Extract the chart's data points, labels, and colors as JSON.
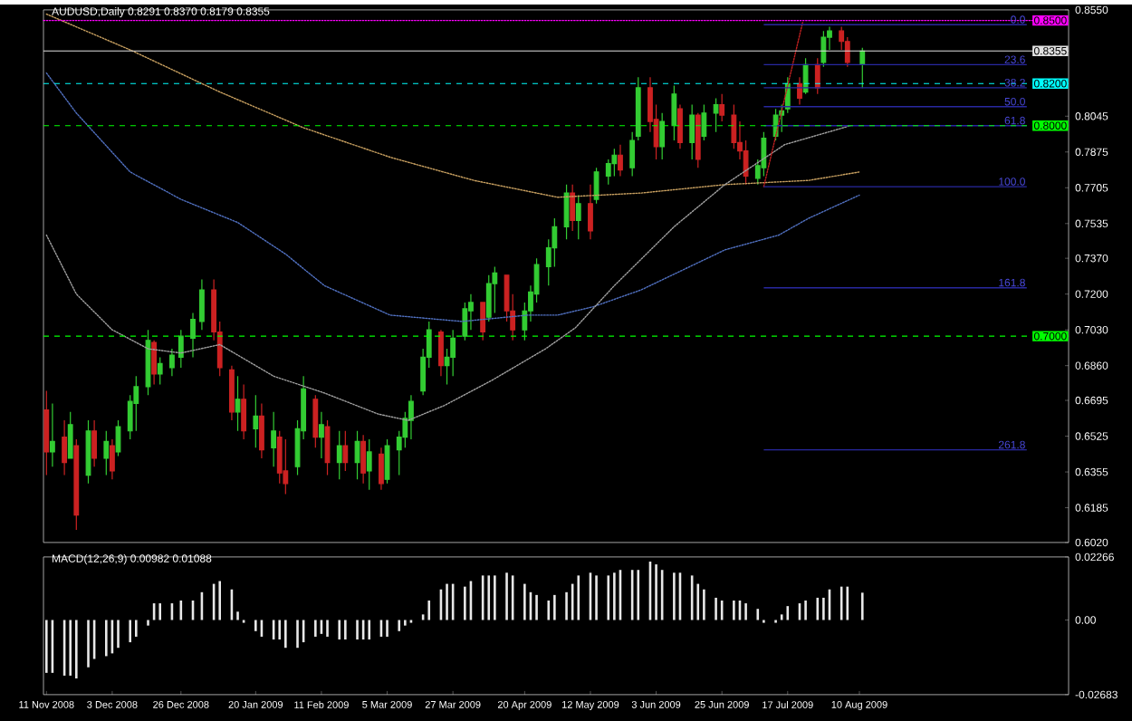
{
  "chart_data": [
    {
      "type": "candlestick",
      "title": "AUDUSD,Daily 0.8291 0.8370 0.8179 0.8355",
      "xlim": [
        "2008-11-10",
        "2009-10-19"
      ],
      "ylim": [
        0.602,
        0.855
      ],
      "tick_labels": "y",
      "yticks": [
        {
          "value": 0.855,
          "label": "0.8550"
        },
        0.8045,
        0.7875,
        0.7705,
        0.7535,
        {
          "value": 0.737,
          "label": "0.7370"
        },
        {
          "value": 0.72,
          "label": "0.7200"
        },
        {
          "value": 0.703,
          "label": "0.7030"
        },
        {
          "value": 0.686,
          "label": "0.6860"
        },
        0.6695,
        0.6525,
        0.6355,
        0.6185,
        {
          "value": 0.602,
          "label": "0.6020"
        }
      ],
      "series": [
        {
          "type": "candlestick",
          "color": "#33cc33",
          "x": [
            "2008-11-13",
            "2008-11-19",
            "2008-11-25",
            "2008-12-01",
            "2008-12-05",
            "2008-12-09",
            "2008-12-11",
            "2008-12-15",
            "2008-12-19",
            "2008-12-23",
            "2008-12-26",
            "2008-12-30",
            "2009-01-02",
            "2009-01-14",
            "2009-01-20",
            "2009-01-26",
            "2009-02-03",
            "2009-02-05",
            "2009-02-11",
            "2009-02-17",
            "2009-02-23",
            "2009-02-27",
            "2009-03-05",
            "2009-03-09",
            "2009-03-11",
            "2009-03-13",
            "2009-03-17",
            "2009-03-19",
            "2009-03-25",
            "2009-03-27",
            "2009-03-31",
            "2009-04-02",
            "2009-04-08",
            "2009-04-10",
            "2009-04-20",
            "2009-04-22",
            "2009-04-24",
            "2009-04-28",
            "2009-04-30",
            "2009-05-04",
            "2009-05-08",
            "2009-05-14",
            "2009-05-18",
            "2009-05-20",
            "2009-05-26",
            "2009-05-28",
            "2009-06-05",
            "2009-06-09",
            "2009-06-15",
            "2009-06-19",
            "2009-06-23",
            "2009-07-07",
            "2009-07-09",
            "2009-07-13",
            "2009-07-15",
            "2009-07-17",
            "2009-07-23",
            "2009-07-29",
            "2009-07-31",
            "2009-08-11"
          ],
          "ohlc": [
            [
              0.645,
              0.668,
              0.638,
              0.65
            ],
            [
              0.642,
              0.664,
              0.642,
              0.658
            ],
            [
              0.634,
              0.66,
              0.63,
              0.655
            ],
            [
              0.642,
              0.655,
              0.634,
              0.65
            ],
            [
              0.645,
              0.66,
              0.643,
              0.657
            ],
            [
              0.655,
              0.672,
              0.651,
              0.669
            ],
            [
              0.668,
              0.681,
              0.655,
              0.676
            ],
            [
              0.676,
              0.703,
              0.672,
              0.698
            ],
            [
              0.682,
              0.69,
              0.677,
              0.687
            ],
            [
              0.685,
              0.694,
              0.681,
              0.691
            ],
            [
              0.69,
              0.703,
              0.685,
              0.7
            ],
            [
              0.699,
              0.711,
              0.69,
              0.708
            ],
            [
              0.707,
              0.727,
              0.703,
              0.722
            ],
            [
              0.664,
              0.681,
              0.655,
              0.67
            ],
            [
              0.656,
              0.672,
              0.647,
              0.662
            ],
            [
              0.647,
              0.664,
              0.638,
              0.655
            ],
            [
              0.638,
              0.66,
              0.634,
              0.656
            ],
            [
              0.655,
              0.681,
              0.651,
              0.675
            ],
            [
              0.652,
              0.664,
              0.642,
              0.658
            ],
            [
              0.64,
              0.655,
              0.632,
              0.648
            ],
            [
              0.64,
              0.655,
              0.632,
              0.65
            ],
            [
              0.636,
              0.651,
              0.627,
              0.645
            ],
            [
              0.632,
              0.651,
              0.63,
              0.648
            ],
            [
              0.646,
              0.655,
              0.634,
              0.652
            ],
            [
              0.652,
              0.664,
              0.647,
              0.661
            ],
            [
              0.66,
              0.672,
              0.651,
              0.669
            ],
            [
              0.674,
              0.694,
              0.672,
              0.69
            ],
            [
              0.69,
              0.707,
              0.685,
              0.703
            ],
            [
              0.686,
              0.694,
              0.677,
              0.69
            ],
            [
              0.69,
              0.703,
              0.681,
              0.699
            ],
            [
              0.7,
              0.716,
              0.698,
              0.713
            ],
            [
              0.712,
              0.72,
              0.703,
              0.716
            ],
            [
              0.709,
              0.729,
              0.707,
              0.725
            ],
            [
              0.725,
              0.733,
              0.711,
              0.73
            ],
            [
              0.703,
              0.716,
              0.698,
              0.712
            ],
            [
              0.712,
              0.724,
              0.707,
              0.721
            ],
            [
              0.72,
              0.737,
              0.716,
              0.734
            ],
            [
              0.733,
              0.746,
              0.724,
              0.742
            ],
            [
              0.742,
              0.756,
              0.733,
              0.752
            ],
            [
              0.752,
              0.772,
              0.746,
              0.768
            ],
            [
              0.755,
              0.767,
              0.746,
              0.763
            ],
            [
              0.765,
              0.78,
              0.763,
              0.778
            ],
            [
              0.776,
              0.784,
              0.772,
              0.782
            ],
            [
              0.782,
              0.789,
              0.776,
              0.786
            ],
            [
              0.78,
              0.797,
              0.776,
              0.793
            ],
            [
              0.795,
              0.823,
              0.793,
              0.818
            ],
            [
              0.79,
              0.806,
              0.784,
              0.802
            ],
            [
              0.8,
              0.819,
              0.793,
              0.815
            ],
            [
              0.792,
              0.81,
              0.784,
              0.805
            ],
            [
              0.795,
              0.81,
              0.793,
              0.806
            ],
            [
              0.806,
              0.813,
              0.797,
              0.81
            ],
            [
              0.775,
              0.784,
              0.772,
              0.781
            ],
            [
              0.78,
              0.797,
              0.776,
              0.794
            ],
            [
              0.795,
              0.808,
              0.793,
              0.805
            ],
            [
              0.805,
              0.81,
              0.797,
              0.807
            ],
            [
              0.808,
              0.823,
              0.806,
              0.82
            ],
            [
              0.816,
              0.832,
              0.815,
              0.829
            ],
            [
              0.83,
              0.845,
              0.828,
              0.842
            ],
            [
              0.842,
              0.847,
              0.836,
              0.845
            ],
            [
              0.8291,
              0.837,
              0.8179,
              0.8355
            ]
          ]
        },
        {
          "type": "candlestick",
          "color": "#cc2222",
          "x": [
            "2008-11-11",
            "2008-11-17",
            "2008-11-21",
            "2008-11-27",
            "2008-12-03",
            "2008-12-17",
            "2009-01-06",
            "2009-01-08",
            "2009-01-12",
            "2009-01-16",
            "2009-01-22",
            "2009-01-28",
            "2009-01-30",
            "2009-02-09",
            "2009-02-13",
            "2009-02-19",
            "2009-02-25",
            "2009-03-03",
            "2009-03-23",
            "2009-04-06",
            "2009-04-14",
            "2009-04-16",
            "2009-05-06",
            "2009-05-12",
            "2009-05-22",
            "2009-06-01",
            "2009-06-03",
            "2009-06-11",
            "2009-06-17",
            "2009-06-25",
            "2009-06-29",
            "2009-07-01",
            "2009-07-03",
            "2009-07-21",
            "2009-07-27",
            "2009-08-04",
            "2009-08-06"
          ],
          "ohlc": [
            [
              0.665,
              0.674,
              0.634,
              0.645
            ],
            [
              0.652,
              0.66,
              0.634,
              0.64
            ],
            [
              0.648,
              0.651,
              0.608,
              0.615
            ],
            [
              0.655,
              0.66,
              0.638,
              0.642
            ],
            [
              0.648,
              0.651,
              0.632,
              0.636
            ],
            [
              0.697,
              0.698,
              0.677,
              0.682
            ],
            [
              0.722,
              0.727,
              0.698,
              0.702
            ],
            [
              0.702,
              0.707,
              0.681,
              0.685
            ],
            [
              0.684,
              0.686,
              0.66,
              0.664
            ],
            [
              0.67,
              0.677,
              0.651,
              0.655
            ],
            [
              0.662,
              0.668,
              0.642,
              0.646
            ],
            [
              0.652,
              0.655,
              0.63,
              0.635
            ],
            [
              0.636,
              0.651,
              0.625,
              0.63
            ],
            [
              0.67,
              0.672,
              0.647,
              0.652
            ],
            [
              0.657,
              0.66,
              0.634,
              0.64
            ],
            [
              0.648,
              0.655,
              0.636,
              0.64
            ],
            [
              0.65,
              0.653,
              0.63,
              0.635
            ],
            [
              0.644,
              0.647,
              0.627,
              0.63
            ],
            [
              0.702,
              0.703,
              0.681,
              0.686
            ],
            [
              0.716,
              0.716,
              0.698,
              0.702
            ],
            [
              0.729,
              0.729,
              0.707,
              0.712
            ],
            [
              0.712,
              0.72,
              0.698,
              0.703
            ],
            [
              0.768,
              0.772,
              0.75,
              0.755
            ],
            [
              0.763,
              0.772,
              0.746,
              0.75
            ],
            [
              0.786,
              0.791,
              0.776,
              0.779
            ],
            [
              0.818,
              0.823,
              0.797,
              0.802
            ],
            [
              0.803,
              0.81,
              0.784,
              0.79
            ],
            [
              0.808,
              0.81,
              0.789,
              0.792
            ],
            [
              0.805,
              0.806,
              0.78,
              0.784
            ],
            [
              0.81,
              0.815,
              0.802,
              0.805
            ],
            [
              0.805,
              0.81,
              0.789,
              0.792
            ],
            [
              0.792,
              0.802,
              0.784,
              0.788
            ],
            [
              0.788,
              0.793,
              0.772,
              0.776
            ],
            [
              0.82,
              0.823,
              0.81,
              0.813
            ],
            [
              0.829,
              0.832,
              0.815,
              0.818
            ],
            [
              0.845,
              0.847,
              0.836,
              0.84
            ],
            [
              0.84,
              0.842,
              0.828,
              0.83
            ]
          ]
        },
        {
          "type": "line",
          "color": "#c8a060",
          "line_style": "dotted",
          "x": [
            "2008-11-11",
            "2008-12-09",
            "2009-01-08",
            "2009-02-05",
            "2009-03-06",
            "2009-04-03",
            "2009-05-01",
            "2009-05-29",
            "2009-06-26",
            "2009-07-24",
            "2009-08-10"
          ],
          "values": [
            0.853,
            0.836,
            0.816,
            0.799,
            0.785,
            0.774,
            0.766,
            0.768,
            0.772,
            0.774,
            0.778
          ]
        },
        {
          "type": "line",
          "color": "#5070c0",
          "line_style": "dotted",
          "x": [
            "2008-11-11",
            "2008-11-21",
            "2008-12-09",
            "2008-12-26",
            "2009-01-14",
            "2009-01-30",
            "2009-02-12",
            "2009-03-06",
            "2009-03-30",
            "2009-04-21",
            "2009-05-01",
            "2009-05-13",
            "2009-05-29",
            "2009-06-26",
            "2009-07-14",
            "2009-07-24",
            "2009-08-10"
          ],
          "values": [
            0.825,
            0.806,
            0.778,
            0.765,
            0.754,
            0.739,
            0.724,
            0.71,
            0.707,
            0.71,
            0.71,
            0.714,
            0.722,
            0.741,
            0.748,
            0.756,
            0.767
          ]
        },
        {
          "type": "line",
          "color": "#a0a0a0",
          "line_style": "dotted",
          "x": [
            "2008-11-11",
            "2008-11-21",
            "2008-12-03",
            "2008-12-15",
            "2008-12-26",
            "2009-01-08",
            "2009-01-26",
            "2009-02-12",
            "2009-03-02",
            "2009-03-12",
            "2009-03-24",
            "2009-04-09",
            "2009-04-27",
            "2009-05-07",
            "2009-05-20",
            "2009-06-09",
            "2009-06-26",
            "2009-07-16",
            "2009-08-07"
          ],
          "values": [
            0.748,
            0.72,
            0.703,
            0.694,
            0.692,
            0.696,
            0.681,
            0.673,
            0.663,
            0.66,
            0.667,
            0.679,
            0.694,
            0.704,
            0.724,
            0.752,
            0.772,
            0.791,
            0.8
          ]
        },
        {
          "type": "line",
          "color": "#c02020",
          "line_style": "dotted",
          "x": [
            "2009-07-09",
            "2009-07-22"
          ],
          "values": [
            0.771,
            0.849
          ]
        },
        {
          "type": "line",
          "color": "#2828a0",
          "line_style": "solid",
          "x": [
            "2009-07-09",
            "2009-10-05"
          ],
          "values": [
            0.848,
            0.848
          ]
        },
        {
          "type": "line",
          "color": "#2828a0",
          "line_style": "solid",
          "x": [
            "2009-07-09",
            "2009-10-05"
          ],
          "values": [
            0.829,
            0.829
          ]
        },
        {
          "type": "line",
          "color": "#2828a0",
          "line_style": "solid",
          "x": [
            "2009-07-09",
            "2009-10-05"
          ],
          "values": [
            0.818,
            0.818
          ]
        },
        {
          "type": "line",
          "color": "#2828a0",
          "line_style": "solid",
          "x": [
            "2009-07-09",
            "2009-10-05"
          ],
          "values": [
            0.809,
            0.809
          ]
        },
        {
          "type": "line",
          "color": "#2828a0",
          "line_style": "solid",
          "x": [
            "2009-07-09",
            "2009-10-05"
          ],
          "values": [
            0.8,
            0.8
          ]
        },
        {
          "type": "line",
          "color": "#2828a0",
          "line_style": "solid",
          "x": [
            "2009-07-09",
            "2009-10-05"
          ],
          "values": [
            0.771,
            0.771
          ]
        },
        {
          "type": "line",
          "color": "#2828a0",
          "line_style": "solid",
          "x": [
            "2009-07-09",
            "2009-10-05"
          ],
          "values": [
            0.723,
            0.723
          ]
        },
        {
          "type": "line",
          "color": "#2828a0",
          "line_style": "solid",
          "x": [
            "2009-07-09",
            "2009-10-05"
          ],
          "values": [
            0.646,
            0.646
          ]
        }
      ],
      "ref_lines": [
        {
          "axis": "y",
          "value": 0.85,
          "label": "0.8500",
          "color": "#ff00ff",
          "line_style": "dotted"
        },
        {
          "axis": "y",
          "value": 0.8355,
          "label": "0.8355",
          "color": "#e0e0e0",
          "line_style": "solid"
        },
        {
          "axis": "y",
          "value": 0.82,
          "label": "0.8200",
          "color": "#00ffff",
          "line_style": "dashed"
        },
        {
          "axis": "y",
          "value": 0.8,
          "label": "0.8000",
          "color": "#00ff00",
          "line_style": "dashed"
        },
        {
          "axis": "y",
          "value": 0.7,
          "label": "0.7000",
          "color": "#00ff00",
          "line_style": "dashed"
        }
      ],
      "annotations": [
        {
          "text": "0.0",
          "x": "2009-10-05",
          "y": 0.848
        },
        {
          "text": "23.6",
          "x": "2009-10-05",
          "y": 0.829
        },
        {
          "text": "38.2",
          "x": "2009-10-05",
          "y": 0.818
        },
        {
          "text": "50.0",
          "x": "2009-10-05",
          "y": 0.809
        },
        {
          "text": "61.8",
          "x": "2009-10-05",
          "y": 0.8
        },
        {
          "text": "100.0",
          "x": "2009-10-05",
          "y": 0.771
        },
        {
          "text": "161.8",
          "x": "2009-10-05",
          "y": 0.723
        },
        {
          "text": "261.8",
          "x": "2009-10-05",
          "y": 0.646
        }
      ]
    },
    {
      "type": "bar",
      "title": "MACD(12,26,9) 0.00982 0.01088",
      "color": "#e8e8e8",
      "xlim": [
        "2008-11-10",
        "2009-10-19"
      ],
      "ylim": [
        -0.02683,
        0.02266
      ],
      "yticks": [
        0.02266,
        {
          "value": 0,
          "label": "0.00"
        },
        -0.02683
      ],
      "xticks": [
        {
          "value": "2008-11-11",
          "label": "11 Nov 2008"
        },
        {
          "value": "2008-12-03",
          "label": "3 Dec 2008"
        },
        {
          "value": "2008-12-26",
          "label": "26 Dec 2008"
        },
        {
          "value": "2009-01-20",
          "label": "20 Jan 2009"
        },
        {
          "value": "2009-02-11",
          "label": "11 Feb 2009"
        },
        {
          "value": "2009-03-05",
          "label": "5 Mar 2009"
        },
        {
          "value": "2009-03-27",
          "label": "27 Mar 2009"
        },
        {
          "value": "2009-04-20",
          "label": "20 Apr 2009"
        },
        {
          "value": "2009-05-12",
          "label": "12 May 2009"
        },
        {
          "value": "2009-06-03",
          "label": "3 Jun 2009"
        },
        {
          "value": "2009-06-25",
          "label": "25 Jun 2009"
        },
        {
          "value": "2009-07-17",
          "label": "17 Jul 2009"
        },
        {
          "value": "2009-08-10",
          "label": "10 Aug 2009"
        }
      ],
      "x": [
        "2008-11-11",
        "2008-11-13",
        "2008-11-17",
        "2008-11-19",
        "2008-11-21",
        "2008-11-25",
        "2008-11-27",
        "2008-12-01",
        "2008-12-03",
        "2008-12-05",
        "2008-12-09",
        "2008-12-11",
        "2008-12-15",
        "2008-12-17",
        "2008-12-19",
        "2008-12-23",
        "2008-12-26",
        "2008-12-30",
        "2009-01-02",
        "2009-01-06",
        "2009-01-08",
        "2009-01-12",
        "2009-01-14",
        "2009-01-16",
        "2009-01-20",
        "2009-01-22",
        "2009-01-26",
        "2009-01-28",
        "2009-01-30",
        "2009-02-03",
        "2009-02-05",
        "2009-02-09",
        "2009-02-11",
        "2009-02-13",
        "2009-02-17",
        "2009-02-19",
        "2009-02-23",
        "2009-02-25",
        "2009-02-27",
        "2009-03-03",
        "2009-03-05",
        "2009-03-09",
        "2009-03-11",
        "2009-03-13",
        "2009-03-17",
        "2009-03-19",
        "2009-03-23",
        "2009-03-25",
        "2009-03-27",
        "2009-03-31",
        "2009-04-02",
        "2009-04-06",
        "2009-04-08",
        "2009-04-10",
        "2009-04-14",
        "2009-04-16",
        "2009-04-20",
        "2009-04-22",
        "2009-04-24",
        "2009-04-28",
        "2009-04-30",
        "2009-05-04",
        "2009-05-06",
        "2009-05-08",
        "2009-05-12",
        "2009-05-14",
        "2009-05-18",
        "2009-05-20",
        "2009-05-22",
        "2009-05-26",
        "2009-05-28",
        "2009-06-01",
        "2009-06-03",
        "2009-06-05",
        "2009-06-09",
        "2009-06-11",
        "2009-06-15",
        "2009-06-17",
        "2009-06-19",
        "2009-06-23",
        "2009-06-25",
        "2009-06-29",
        "2009-07-01",
        "2009-07-03",
        "2009-07-07",
        "2009-07-09",
        "2009-07-13",
        "2009-07-15",
        "2009-07-17",
        "2009-07-21",
        "2009-07-23",
        "2009-07-27",
        "2009-07-29",
        "2009-07-31",
        "2009-08-04",
        "2009-08-06",
        "2009-08-11"
      ],
      "values": [
        -0.019,
        -0.019,
        -0.02,
        -0.02,
        -0.021,
        -0.017,
        -0.014,
        -0.013,
        -0.012,
        -0.01,
        -0.008,
        -0.006,
        -0.002,
        0.006,
        0.006,
        0.006,
        0.007,
        0.007,
        0.01,
        0.013,
        0.014,
        0.011,
        0.003,
        -0.001,
        -0.004,
        -0.006,
        -0.007,
        -0.007,
        -0.01,
        -0.01,
        -0.008,
        -0.006,
        -0.005,
        -0.006,
        -0.007,
        -0.007,
        -0.007,
        -0.007,
        -0.007,
        -0.006,
        -0.006,
        -0.004,
        -0.002,
        -0.001,
        0.002,
        0.007,
        0.011,
        0.013,
        0.013,
        0.012,
        0.014,
        0.016,
        0.016,
        0.016,
        0.017,
        0.016,
        0.013,
        0.01,
        0.009,
        0.007,
        0.009,
        0.01,
        0.013,
        0.016,
        0.017,
        0.016,
        0.016,
        0.017,
        0.018,
        0.018,
        0.018,
        0.021,
        0.02,
        0.018,
        0.017,
        0.017,
        0.016,
        0.013,
        0.011,
        0.008,
        0.007,
        0.007,
        0.007,
        0.006,
        0.004,
        -0.001,
        -0.001,
        0.002,
        0.005,
        0.006,
        0.007,
        0.008,
        0.008,
        0.011,
        0.012,
        0.012,
        0.00982
      ]
    }
  ]
}
